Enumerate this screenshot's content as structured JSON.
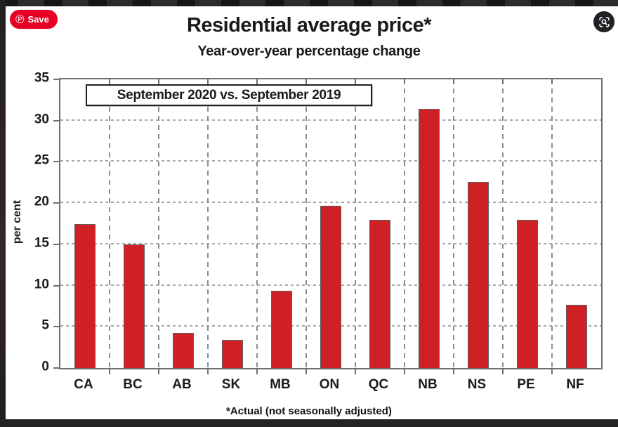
{
  "overlay": {
    "pinterest": {
      "label": "Save",
      "glyph": "℗",
      "color": "#e60023"
    },
    "lens_icon": {
      "name": "image-search",
      "background": "#202124"
    }
  },
  "chart_data": {
    "type": "bar",
    "title": "Residential average price*",
    "subtitle": "Year-over-year percentage change",
    "legend": "September 2020 vs. September 2019",
    "ylabel": "per cent",
    "footnote": "*Actual (not seasonally adjusted)",
    "categories": [
      "CA",
      "BC",
      "AB",
      "SK",
      "MB",
      "ON",
      "QC",
      "NB",
      "NS",
      "PE",
      "NF"
    ],
    "values": [
      17.5,
      15.0,
      4.3,
      3.4,
      9.4,
      19.7,
      18.0,
      31.4,
      22.6,
      18.0,
      7.7
    ],
    "ylim": [
      0,
      35
    ],
    "ytick_step": 5,
    "grid": true,
    "legend_position": "top-left-inside",
    "bar_color": "#cf2026",
    "bar_border_color": "#5f5f5f",
    "gridline_color": "#a0a0a0",
    "axis_color": "#6f6f6f"
  }
}
